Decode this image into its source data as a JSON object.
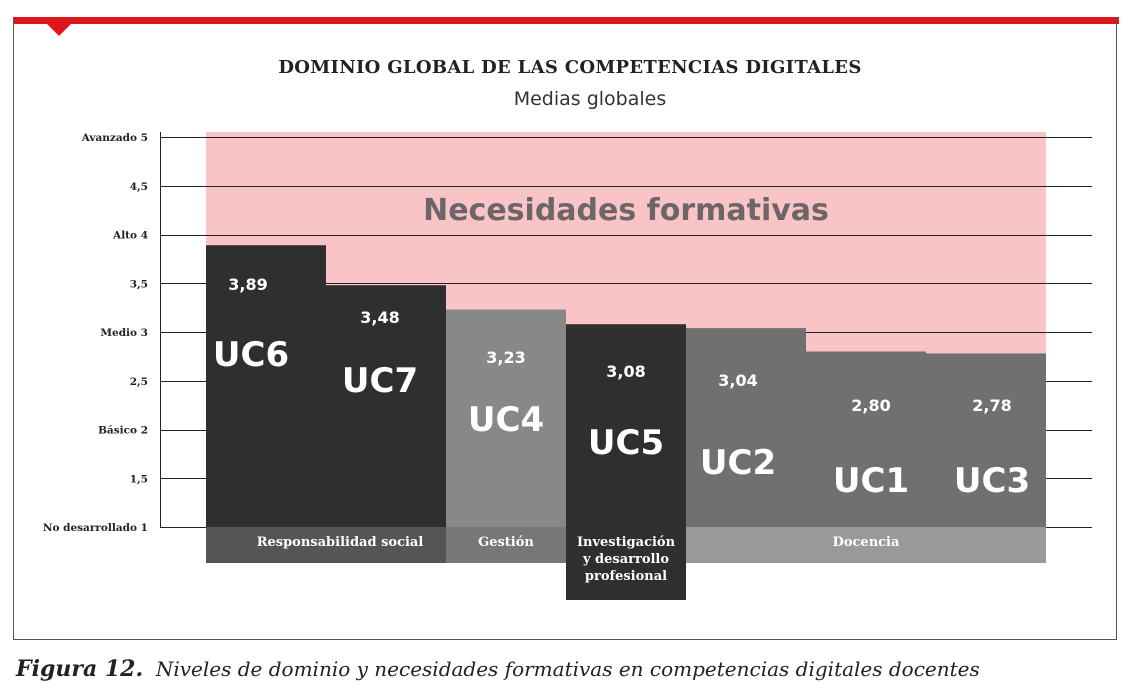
{
  "header": {
    "title": "DOMINIO GLOBAL DE LAS COMPETENCIAS DIGITALES",
    "subtitle": "Medias globales"
  },
  "caption": {
    "figure": "Figura 12.",
    "text": "Niveles de dominio y necesidades formativas en competencias digitales docentes"
  },
  "colors": {
    "accent": "#e1161c",
    "needs_region": "#f9c4c6",
    "needs_text": "#6d6567",
    "dark": "#2f2f2f",
    "mid": "#888888",
    "grey": "#707070",
    "group_dark": "#555555",
    "group_mid": "#777777",
    "group_light": "#999999"
  },
  "chart_data": {
    "type": "bar",
    "ylim": [
      1,
      5
    ],
    "yticks": [
      {
        "value": 5,
        "label": "Avanzado  5"
      },
      {
        "value": 4.5,
        "label": "4,5"
      },
      {
        "value": 4,
        "label": "Alto  4"
      },
      {
        "value": 3.5,
        "label": "3,5"
      },
      {
        "value": 3,
        "label": "Medio  3"
      },
      {
        "value": 2.5,
        "label": "2,5"
      },
      {
        "value": 2,
        "label": "Básico  2"
      },
      {
        "value": 1.5,
        "label": "1,5"
      },
      {
        "value": 1,
        "label": "No desarrollado  1"
      }
    ],
    "grid": true,
    "annotation": "Necesidades formativas",
    "bars": [
      {
        "category": "UC6",
        "value": 3.89,
        "label": "3,89",
        "color": "dark"
      },
      {
        "category": "UC7",
        "value": 3.48,
        "label": "3,48",
        "color": "dark"
      },
      {
        "category": "UC4",
        "value": 3.23,
        "label": "3,23",
        "color": "mid"
      },
      {
        "category": "UC5",
        "value": 3.08,
        "label": "3,08",
        "color": "dark"
      },
      {
        "category": "UC2",
        "value": 3.04,
        "label": "3,04",
        "color": "grey"
      },
      {
        "category": "UC1",
        "value": 2.8,
        "label": "2,80",
        "color": "grey"
      },
      {
        "category": "UC3",
        "value": 2.78,
        "label": "2,78",
        "color": "grey"
      }
    ],
    "groups": [
      {
        "label": "Responsabilidad social",
        "start": 0,
        "end": 1,
        "color": "group_dark"
      },
      {
        "label": "Gestión",
        "start": 2,
        "end": 2,
        "color": "group_mid"
      },
      {
        "label": "Investigación y desarrollo profesional",
        "start": 3,
        "end": 3,
        "color": "dark"
      },
      {
        "label": "Docencia",
        "start": 4,
        "end": 6,
        "color": "group_light"
      }
    ]
  }
}
